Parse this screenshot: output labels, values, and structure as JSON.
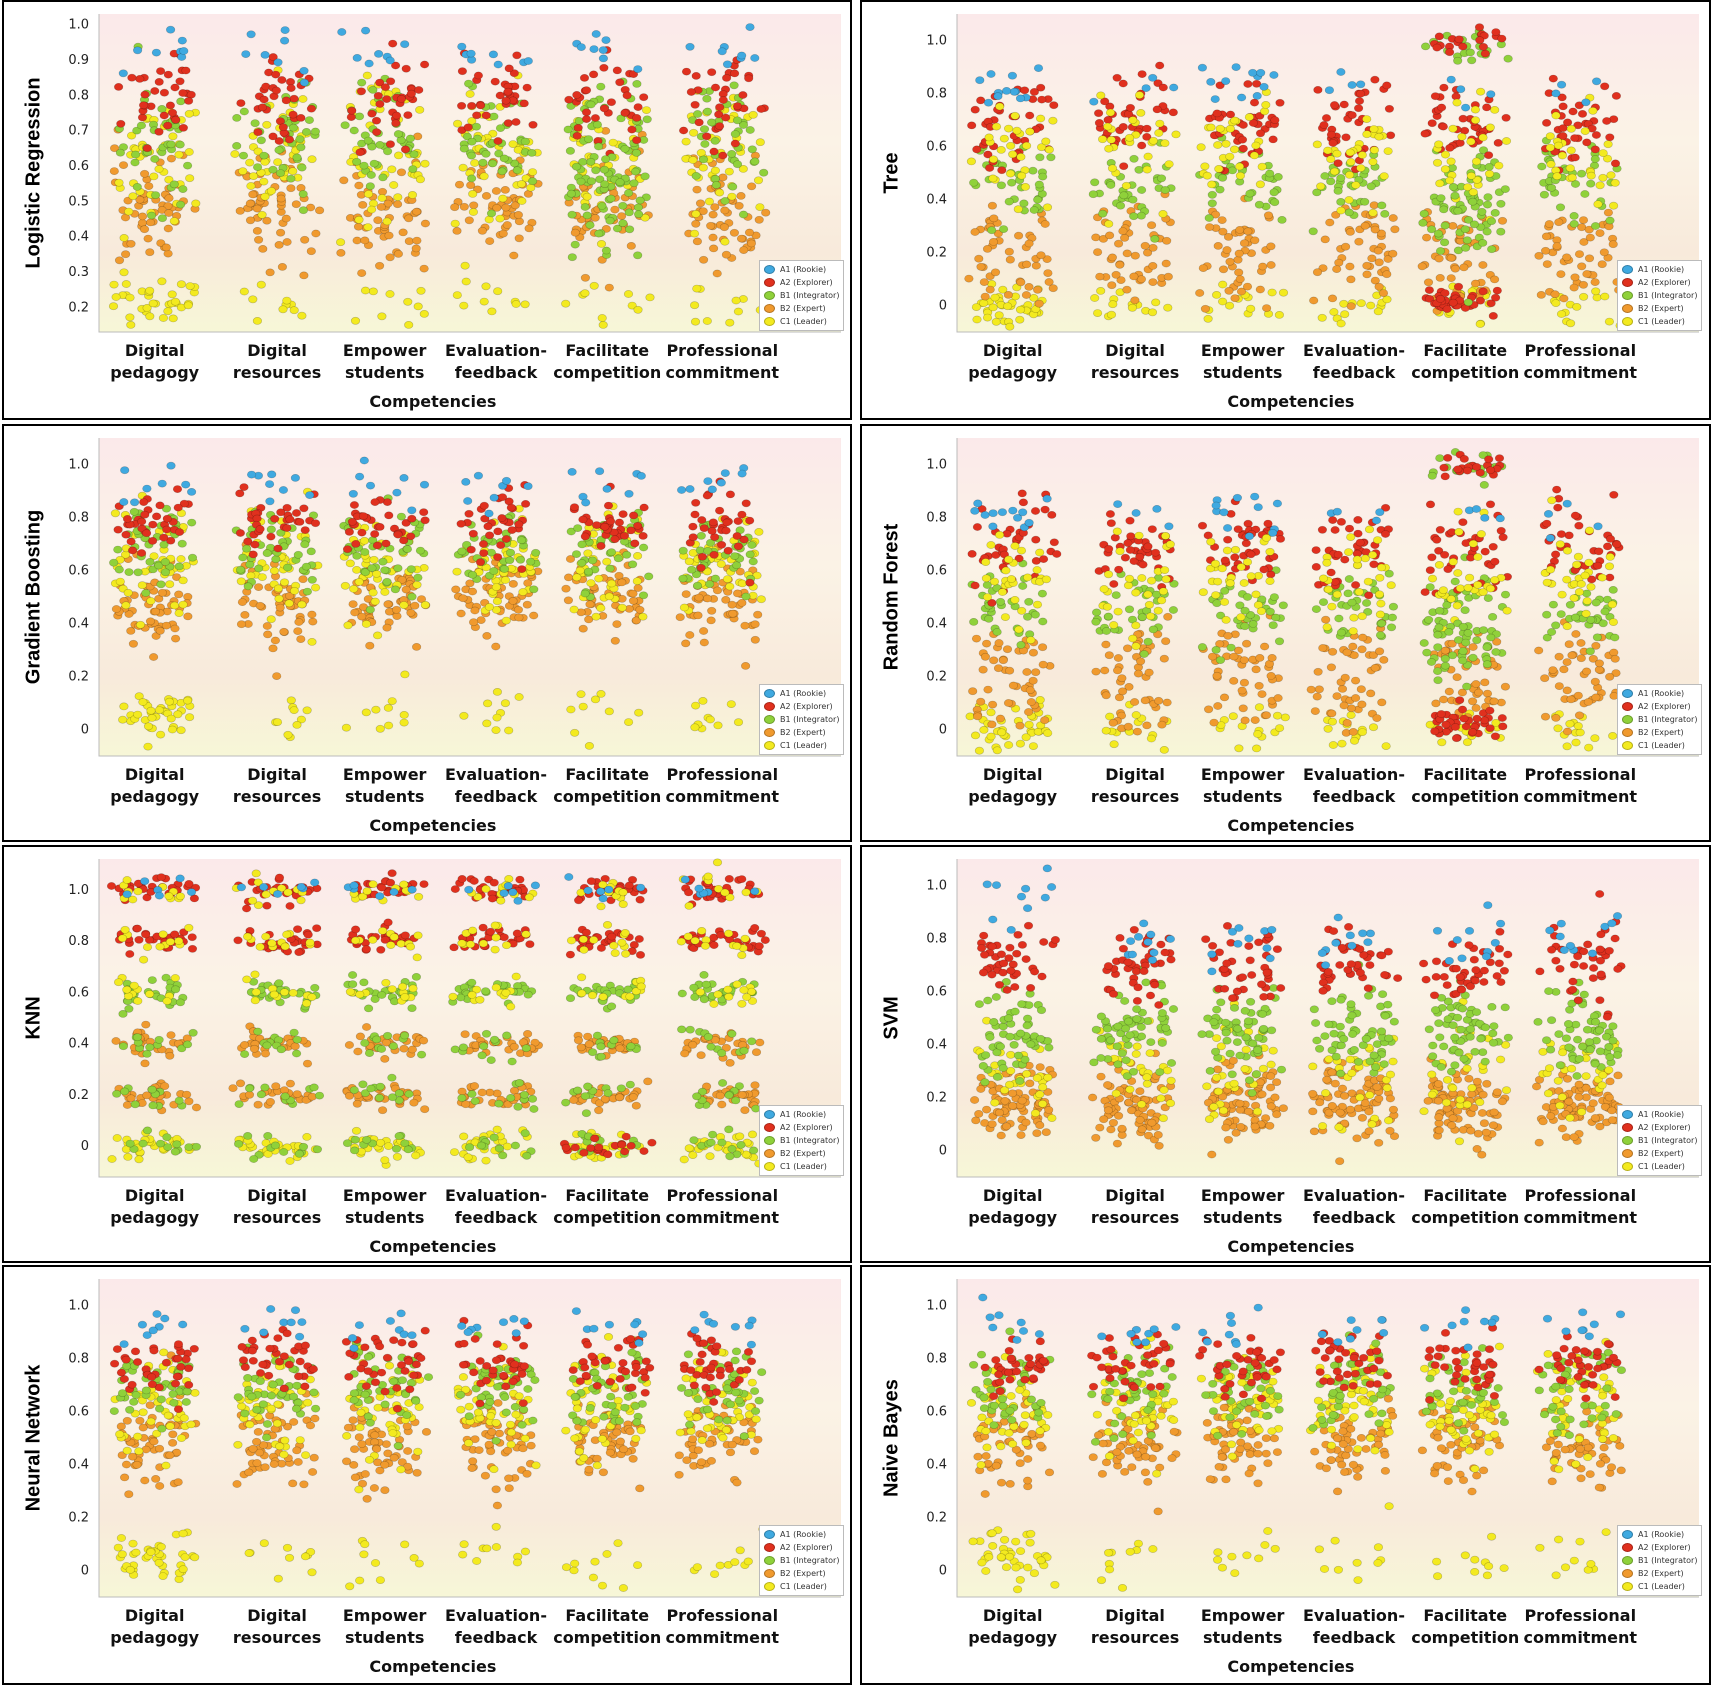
{
  "colors": {
    "A1": "#3fa9e0",
    "A2": "#e0301e",
    "B1": "#8fd13a",
    "B2": "#f09a2e",
    "C1": "#f3ea1f"
  },
  "legend": [
    "A1 (Rookie)",
    "A2 (Explorer)",
    "B1 (Integrator)",
    "B2 (Expert)",
    "C1 (Leader)"
  ],
  "chart_data": [
    {
      "type": "scatter",
      "ylabel": "Logistic Regression",
      "xlabel": "Competencies",
      "categories": [
        "Digital pedagogy",
        "Digital resources",
        "Empower students",
        "Evaluation-feedback",
        "Facilitate competition",
        "Professional commitment"
      ],
      "yticks": [
        "0.2",
        "0.3",
        "0.4",
        "0.5",
        "0.6",
        "0.7",
        "0.8",
        "0.9",
        "1.0"
      ],
      "ylim": [
        0.13,
        1.03
      ]
    },
    {
      "type": "scatter",
      "ylabel": "Tree",
      "xlabel": "Competencies",
      "categories": [
        "Digital pedagogy",
        "Digital resources",
        "Empower students",
        "Evaluation-feedback",
        "Facilitate competition",
        "Professional commitment"
      ],
      "yticks": [
        "0",
        "0.2",
        "0.4",
        "0.6",
        "0.8",
        "1.0"
      ],
      "ylim": [
        -0.1,
        1.1
      ]
    },
    {
      "type": "scatter",
      "ylabel": "Gradient Boosting",
      "xlabel": "Competencies",
      "categories": [
        "Digital pedagogy",
        "Digital resources",
        "Empower students",
        "Evaluation-feedback",
        "Facilitate competition",
        "Professional commitment"
      ],
      "yticks": [
        "0",
        "0.2",
        "0.4",
        "0.6",
        "0.8",
        "1.0"
      ],
      "ylim": [
        -0.1,
        1.1
      ]
    },
    {
      "type": "scatter",
      "ylabel": "Random Forest",
      "xlabel": "Competencies",
      "categories": [
        "Digital pedagogy",
        "Digital resources",
        "Empower students",
        "Evaluation-feedback",
        "Facilitate competition",
        "Professional commitment"
      ],
      "yticks": [
        "0",
        "0.2",
        "0.4",
        "0.6",
        "0.8",
        "1.0"
      ],
      "ylim": [
        -0.1,
        1.1
      ]
    },
    {
      "type": "scatter",
      "ylabel": "KNN",
      "xlabel": "Competencies",
      "categories": [
        "Digital pedagogy",
        "Digital resources",
        "Empower students",
        "Evaluation-feedback",
        "Facilitate competition",
        "Professional commitment"
      ],
      "yticks": [
        "0",
        "0.2",
        "0.4",
        "0.6",
        "0.8",
        "1.0"
      ],
      "ylim": [
        -0.12,
        1.12
      ]
    },
    {
      "type": "scatter",
      "ylabel": "SVM",
      "xlabel": "Competencies",
      "categories": [
        "Digital pedagogy",
        "Digital resources",
        "Empower students",
        "Evaluation-feedback",
        "Facilitate competition",
        "Professional commitment"
      ],
      "yticks": [
        "0",
        "0.2",
        "0.4",
        "0.6",
        "0.8",
        "1.0"
      ],
      "ylim": [
        -0.1,
        1.1
      ]
    },
    {
      "type": "scatter",
      "ylabel": "Neural Network",
      "xlabel": "Competencies",
      "categories": [
        "Digital pedagogy",
        "Digital resources",
        "Empower students",
        "Evaluation-feedback",
        "Facilitate competition",
        "Professional commitment"
      ],
      "yticks": [
        "0",
        "0.2",
        "0.4",
        "0.6",
        "0.8",
        "1.0"
      ],
      "ylim": [
        -0.1,
        1.1
      ]
    },
    {
      "type": "scatter",
      "ylabel": "Naive Bayes",
      "xlabel": "Competencies",
      "categories": [
        "Digital pedagogy",
        "Digital resources",
        "Empower students",
        "Evaluation-feedback",
        "Facilitate competition",
        "Professional commitment"
      ],
      "yticks": [
        "0",
        "0.2",
        "0.4",
        "0.6",
        "0.8",
        "1.0"
      ],
      "ylim": [
        -0.1,
        1.1
      ]
    }
  ]
}
